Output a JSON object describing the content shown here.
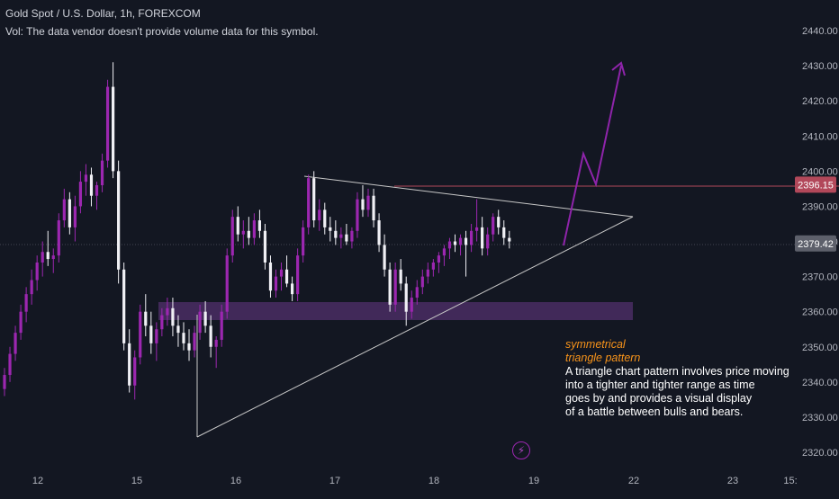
{
  "header": {
    "symbol_line": "Gold Spot / U.S. Dollar, 1h, FOREXCOM",
    "volume_note": "Vol: The data vendor doesn't provide volume data for this symbol."
  },
  "annotation": {
    "title_lines": [
      "symmetrical",
      "triangle pattern"
    ],
    "body_lines": [
      "A triangle chart pattern involves price moving",
      "into a tighter and tighter range as time",
      "goes by and provides a visual display",
      "of a battle between bulls and bears."
    ]
  },
  "flash_icon": "lightning-bolt-icon",
  "colors": {
    "background": "#131722",
    "bull_candle": "#9c27b0",
    "bear_candle": "#f0f0f5",
    "resistance": "#b2485a",
    "current_price_label": "#5d606b",
    "support_zone": "#4a2d63",
    "arrow": "#8e24aa",
    "triangle_lines": "#c8c8c8"
  },
  "chart_data": {
    "type": "candlestick",
    "title": "Gold Spot / U.S. Dollar, 1h, FOREXCOM",
    "y_axis": {
      "min": 2316,
      "max": 2446,
      "ticks": [
        2320,
        2330,
        2340,
        2350,
        2360,
        2370,
        2380,
        2390,
        2400,
        2410,
        2420,
        2430,
        2440
      ],
      "tick_labels": [
        "2320.00",
        "2330.00",
        "2340.00",
        "2350.00",
        "2360.00",
        "2370.00",
        "2380.00",
        "2390.00",
        "2400.00",
        "2410.00",
        "2420.00",
        "2430.00",
        "2440.00"
      ]
    },
    "x_axis": {
      "tick_labels": [
        "12",
        "15",
        "16",
        "17",
        "18",
        "19",
        "22",
        "23",
        "15:"
      ]
    },
    "price_labels": [
      {
        "value": 2396.15,
        "text": "2396.15",
        "role": "resistance"
      },
      {
        "value": 2379.42,
        "text": "2379.42",
        "role": "current"
      }
    ],
    "candles": [
      [
        2338,
        2344,
        2336,
        2342
      ],
      [
        2342,
        2350,
        2340,
        2348
      ],
      [
        2348,
        2356,
        2346,
        2354
      ],
      [
        2354,
        2362,
        2352,
        2360
      ],
      [
        2360,
        2367,
        2357,
        2365
      ],
      [
        2365,
        2372,
        2362,
        2369
      ],
      [
        2369,
        2376,
        2366,
        2374
      ],
      [
        2374,
        2380,
        2370,
        2377
      ],
      [
        2377,
        2383,
        2373,
        2375
      ],
      [
        2375,
        2378,
        2371,
        2376
      ],
      [
        2376,
        2388,
        2374,
        2386
      ],
      [
        2386,
        2395,
        2384,
        2392
      ],
      [
        2392,
        2394,
        2382,
        2384
      ],
      [
        2384,
        2393,
        2380,
        2390
      ],
      [
        2390,
        2400,
        2388,
        2397
      ],
      [
        2397,
        2402,
        2393,
        2399
      ],
      [
        2399,
        2401,
        2390,
        2393
      ],
      [
        2393,
        2397,
        2389,
        2396
      ],
      [
        2396,
        2405,
        2394,
        2403
      ],
      [
        2403,
        2426,
        2401,
        2424
      ],
      [
        2424,
        2431,
        2398,
        2400
      ],
      [
        2400,
        2403,
        2368,
        2372
      ],
      [
        2372,
        2374,
        2349,
        2351
      ],
      [
        2351,
        2355,
        2337,
        2339
      ],
      [
        2339,
        2349,
        2335,
        2347
      ],
      [
        2347,
        2362,
        2345,
        2360
      ],
      [
        2360,
        2365,
        2353,
        2356
      ],
      [
        2356,
        2360,
        2348,
        2351
      ],
      [
        2351,
        2357,
        2346,
        2355
      ],
      [
        2355,
        2361,
        2353,
        2359
      ],
      [
        2359,
        2364,
        2356,
        2361
      ],
      [
        2361,
        2364,
        2353,
        2356
      ],
      [
        2356,
        2359,
        2350,
        2354
      ],
      [
        2354,
        2357,
        2349,
        2351
      ],
      [
        2351,
        2355,
        2346,
        2349
      ],
      [
        2349,
        2356,
        2347,
        2354
      ],
      [
        2354,
        2362,
        2352,
        2360
      ],
      [
        2360,
        2363,
        2354,
        2356
      ],
      [
        2356,
        2359,
        2347,
        2350
      ],
      [
        2350,
        2353,
        2344,
        2352
      ],
      [
        2352,
        2362,
        2350,
        2360
      ],
      [
        2360,
        2378,
        2358,
        2376
      ],
      [
        2376,
        2389,
        2374,
        2387
      ],
      [
        2387,
        2390,
        2380,
        2382
      ],
      [
        2382,
        2386,
        2378,
        2383
      ],
      [
        2383,
        2387,
        2379,
        2381
      ],
      [
        2381,
        2388,
        2379,
        2386
      ],
      [
        2386,
        2389,
        2381,
        2383
      ],
      [
        2383,
        2385,
        2372,
        2374
      ],
      [
        2374,
        2376,
        2364,
        2366
      ],
      [
        2366,
        2372,
        2364,
        2370
      ],
      [
        2370,
        2374,
        2366,
        2372
      ],
      [
        2372,
        2376,
        2367,
        2368
      ],
      [
        2368,
        2370,
        2363,
        2365
      ],
      [
        2365,
        2378,
        2363,
        2376
      ],
      [
        2376,
        2386,
        2374,
        2384
      ],
      [
        2384,
        2399,
        2382,
        2398
      ],
      [
        2398,
        2400,
        2384,
        2386
      ],
      [
        2386,
        2392,
        2383,
        2389
      ],
      [
        2389,
        2391,
        2382,
        2384
      ],
      [
        2384,
        2387,
        2380,
        2383
      ],
      [
        2383,
        2386,
        2379,
        2381
      ],
      [
        2381,
        2384,
        2378,
        2382
      ],
      [
        2382,
        2385,
        2379,
        2380
      ],
      [
        2380,
        2384,
        2378,
        2383
      ],
      [
        2383,
        2394,
        2381,
        2392
      ],
      [
        2392,
        2396,
        2387,
        2389
      ],
      [
        2389,
        2395,
        2387,
        2393
      ],
      [
        2393,
        2395,
        2384,
        2386
      ],
      [
        2386,
        2388,
        2377,
        2379
      ],
      [
        2379,
        2382,
        2370,
        2372
      ],
      [
        2372,
        2374,
        2360,
        2362
      ],
      [
        2362,
        2374,
        2360,
        2372
      ],
      [
        2372,
        2375,
        2366,
        2368
      ],
      [
        2368,
        2370,
        2356,
        2360
      ],
      [
        2360,
        2366,
        2358,
        2364
      ],
      [
        2364,
        2369,
        2362,
        2367
      ],
      [
        2367,
        2372,
        2365,
        2370
      ],
      [
        2370,
        2374,
        2368,
        2372
      ],
      [
        2372,
        2375,
        2370,
        2374
      ],
      [
        2374,
        2377,
        2371,
        2376
      ],
      [
        2376,
        2379,
        2373,
        2378
      ],
      [
        2378,
        2381,
        2375,
        2380
      ],
      [
        2380,
        2382,
        2377,
        2379
      ],
      [
        2379,
        2382,
        2376,
        2381
      ],
      [
        2381,
        2383,
        2370,
        2379
      ],
      [
        2379,
        2385,
        2377,
        2383
      ],
      [
        2383,
        2392,
        2380,
        2384
      ],
      [
        2384,
        2387,
        2376,
        2378
      ],
      [
        2378,
        2384,
        2376,
        2382
      ],
      [
        2382,
        2388,
        2380,
        2387
      ],
      [
        2387,
        2389,
        2382,
        2384
      ],
      [
        2384,
        2386,
        2379,
        2381
      ],
      [
        2381,
        2383,
        2378,
        2380
      ]
    ]
  }
}
